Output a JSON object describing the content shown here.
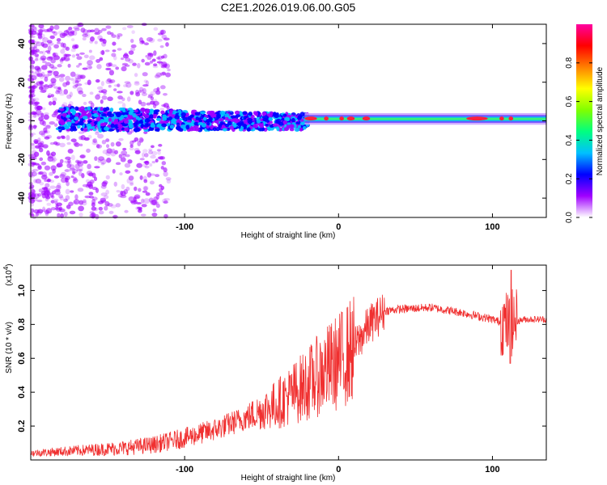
{
  "title": "C2E1.2026.019.06.00.G05",
  "chart_data": [
    {
      "type": "heatmap",
      "name": "spectrogram",
      "xlabel": "Height of straight line (km)",
      "ylabel": "Frequency (Hz)",
      "xlim": [
        -200,
        135
      ],
      "ylim": [
        -50,
        50
      ],
      "xticks": [
        -100,
        0,
        100
      ],
      "xtick_labels": [
        "-100",
        "0",
        "100"
      ],
      "yticks": [
        -40,
        -20,
        0,
        20,
        40
      ],
      "ytick_labels": [
        "-40",
        "-20",
        "0",
        "20",
        "40"
      ],
      "description_band": "broadband scatter for x < -120 km, narrowing band around 0-5 Hz from -180 to -20 km, single narrow line near 0-2 Hz from -20 km to 135 km",
      "colorbar": {
        "label": "Normalized spectral amplitude",
        "range": [
          0,
          1
        ],
        "ticks": [
          0.0,
          0.2,
          0.4,
          0.6,
          0.8
        ],
        "tick_labels": [
          "0.0",
          "0.2",
          "0.4",
          "0.6",
          "0.8"
        ],
        "colors": [
          "#ffffff",
          "#a000ff",
          "#0000ff",
          "#00c0ff",
          "#00ff80",
          "#80ff00",
          "#ffff00",
          "#ff8000",
          "#ff0000",
          "#ff00a0"
        ]
      }
    },
    {
      "type": "line",
      "name": "snr",
      "xlabel": "Height of straight line (km)",
      "ylabel": "SNR (10 * v/v)",
      "y_multiplier": "(x10",
      "y_multiplier_exp": "4",
      "y_multiplier_close": ")",
      "xlim": [
        -200,
        135
      ],
      "ylim": [
        0,
        1.15
      ],
      "xticks": [
        -100,
        0,
        100
      ],
      "xtick_labels": [
        "-100",
        "0",
        "100"
      ],
      "yticks": [
        0.2,
        0.4,
        0.6,
        0.8,
        1.0
      ],
      "ytick_labels": [
        "0.2",
        "0.4",
        "0.6",
        "0.8",
        "1.0"
      ],
      "color": "#f03030",
      "series": [
        {
          "name": "SNR",
          "x": [
            -200,
            -180,
            -160,
            -140,
            -120,
            -100,
            -80,
            -60,
            -40,
            -20,
            -10,
            0,
            10,
            20,
            30,
            40,
            60,
            80,
            100,
            110,
            120,
            135
          ],
          "y": [
            0.04,
            0.05,
            0.06,
            0.07,
            0.09,
            0.13,
            0.18,
            0.25,
            0.33,
            0.45,
            0.52,
            0.58,
            0.66,
            0.8,
            0.88,
            0.89,
            0.9,
            0.87,
            0.83,
            0.8,
            0.83,
            0.83
          ]
        }
      ]
    }
  ]
}
